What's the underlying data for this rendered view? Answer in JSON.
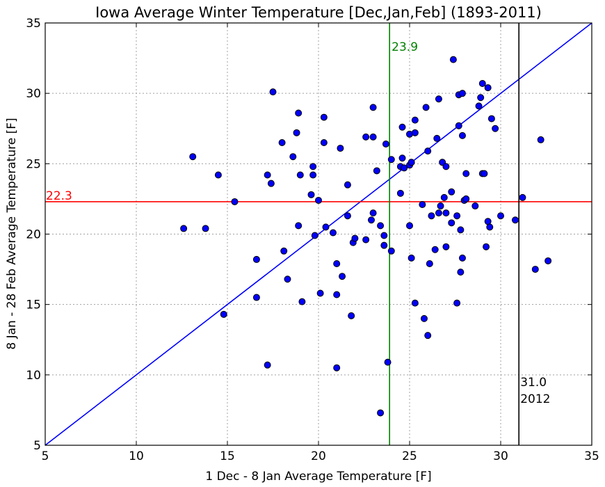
{
  "chart_data": {
    "type": "scatter",
    "title": "Iowa Average Winter Temperature [Dec,Jan,Feb] (1893-2011)",
    "xlabel": "1 Dec - 8 Jan Average Temperature [F]",
    "ylabel": "8 Jan - 28 Feb Average Temperature [F]",
    "xlim": [
      5,
      35
    ],
    "ylim": [
      5,
      35
    ],
    "xticks": [
      5,
      10,
      15,
      20,
      25,
      30,
      35
    ],
    "yticks": [
      5,
      10,
      15,
      20,
      25,
      30,
      35
    ],
    "grid": true,
    "point_color": "#0000ff",
    "points": [
      [
        12.6,
        20.4
      ],
      [
        13.1,
        25.5
      ],
      [
        13.8,
        20.4
      ],
      [
        14.5,
        24.2
      ],
      [
        14.8,
        14.3
      ],
      [
        15.4,
        22.3
      ],
      [
        16.6,
        18.2
      ],
      [
        16.6,
        15.5
      ],
      [
        17.2,
        24.2
      ],
      [
        17.4,
        23.6
      ],
      [
        17.2,
        10.7
      ],
      [
        17.5,
        30.1
      ],
      [
        18.0,
        26.5
      ],
      [
        18.1,
        18.8
      ],
      [
        18.3,
        16.8
      ],
      [
        18.6,
        25.5
      ],
      [
        18.8,
        27.2
      ],
      [
        18.9,
        28.6
      ],
      [
        19.0,
        24.2
      ],
      [
        18.9,
        20.6
      ],
      [
        19.1,
        15.2
      ],
      [
        19.6,
        22.8
      ],
      [
        19.7,
        24.8
      ],
      [
        19.7,
        24.2
      ],
      [
        19.8,
        19.9
      ],
      [
        20.0,
        22.4
      ],
      [
        20.1,
        15.8
      ],
      [
        20.3,
        28.3
      ],
      [
        20.3,
        26.5
      ],
      [
        20.4,
        20.5
      ],
      [
        20.8,
        20.1
      ],
      [
        21.0,
        17.9
      ],
      [
        21.0,
        15.7
      ],
      [
        21.0,
        10.5
      ],
      [
        21.2,
        26.1
      ],
      [
        21.3,
        17.0
      ],
      [
        21.6,
        21.3
      ],
      [
        21.6,
        23.5
      ],
      [
        21.8,
        14.2
      ],
      [
        21.9,
        19.4
      ],
      [
        22.0,
        19.7
      ],
      [
        22.6,
        26.9
      ],
      [
        22.6,
        19.6
      ],
      [
        22.9,
        21.0
      ],
      [
        23.0,
        29.0
      ],
      [
        23.0,
        21.5
      ],
      [
        23.0,
        26.9
      ],
      [
        23.2,
        24.5
      ],
      [
        23.4,
        7.3
      ],
      [
        23.4,
        20.6
      ],
      [
        23.6,
        19.9
      ],
      [
        23.6,
        19.2
      ],
      [
        23.7,
        26.4
      ],
      [
        23.8,
        10.9
      ],
      [
        24.0,
        25.3
      ],
      [
        24.0,
        18.8
      ],
      [
        24.5,
        24.8
      ],
      [
        24.5,
        22.9
      ],
      [
        24.6,
        27.6
      ],
      [
        24.7,
        24.7
      ],
      [
        24.6,
        25.4
      ],
      [
        25.0,
        27.1
      ],
      [
        25.0,
        24.9
      ],
      [
        25.0,
        20.6
      ],
      [
        25.1,
        18.3
      ],
      [
        25.1,
        25.1
      ],
      [
        25.3,
        28.1
      ],
      [
        25.3,
        27.2
      ],
      [
        25.3,
        15.1
      ],
      [
        25.7,
        22.1
      ],
      [
        25.8,
        14.0
      ],
      [
        25.9,
        29.0
      ],
      [
        26.0,
        25.9
      ],
      [
        26.0,
        12.8
      ],
      [
        26.1,
        17.9
      ],
      [
        26.2,
        21.3
      ],
      [
        26.4,
        18.9
      ],
      [
        26.5,
        26.8
      ],
      [
        26.6,
        29.6
      ],
      [
        26.6,
        21.5
      ],
      [
        26.7,
        22.0
      ],
      [
        26.8,
        25.1
      ],
      [
        26.9,
        22.6
      ],
      [
        27.0,
        24.8
      ],
      [
        27.0,
        21.5
      ],
      [
        27.0,
        19.1
      ],
      [
        27.3,
        23.0
      ],
      [
        27.3,
        20.8
      ],
      [
        27.4,
        32.4
      ],
      [
        27.6,
        15.1
      ],
      [
        27.6,
        21.3
      ],
      [
        27.7,
        29.9
      ],
      [
        27.7,
        27.7
      ],
      [
        27.8,
        20.3
      ],
      [
        27.8,
        17.3
      ],
      [
        27.9,
        30.0
      ],
      [
        27.9,
        27.0
      ],
      [
        27.9,
        18.3
      ],
      [
        28.0,
        22.4
      ],
      [
        28.1,
        24.3
      ],
      [
        28.1,
        22.5
      ],
      [
        28.6,
        22.0
      ],
      [
        28.8,
        29.1
      ],
      [
        28.9,
        29.7
      ],
      [
        29.0,
        30.7
      ],
      [
        29.0,
        24.3
      ],
      [
        29.1,
        24.3
      ],
      [
        29.2,
        19.1
      ],
      [
        29.3,
        30.4
      ],
      [
        29.3,
        20.9
      ],
      [
        29.4,
        20.5
      ],
      [
        29.5,
        28.2
      ],
      [
        29.7,
        27.5
      ],
      [
        30.0,
        21.3
      ],
      [
        30.8,
        21.0
      ],
      [
        31.2,
        22.6
      ],
      [
        31.9,
        17.5
      ],
      [
        32.2,
        26.7
      ],
      [
        32.6,
        18.1
      ]
    ],
    "reference_lines": {
      "diagonal": {
        "from": [
          5,
          5
        ],
        "to": [
          35,
          35
        ],
        "color": "#0000ff"
      },
      "horizontal_mean": {
        "y": 22.3,
        "label": "22.3",
        "color": "#ff0000"
      },
      "vertical_mean": {
        "x": 23.9,
        "label": "23.9",
        "color": "#008000"
      },
      "vertical_2012": {
        "x": 31.0,
        "label_value": "31.0",
        "label_year": "2012",
        "color": "#000000"
      }
    }
  }
}
